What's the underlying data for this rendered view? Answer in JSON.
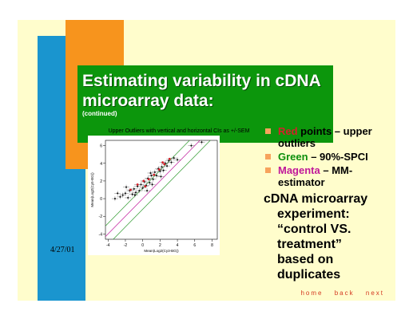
{
  "slide": {
    "title": "Estimating variability in cDNA microarray data:",
    "subtitle": "(continued)",
    "date": "4/27/01",
    "bullets": [
      {
        "colored": "Red",
        "color": "#d4202a",
        "rest": " points – upper outliers"
      },
      {
        "colored": "Green",
        "color": "#0c8f0c",
        "rest": " – 90%-SPCI"
      },
      {
        "colored": "Magenta",
        "color": "#c0189a",
        "rest": " – MM-estimator"
      }
    ],
    "experiment_lines": [
      "cDNA microarray",
      "experiment:",
      "“control VS.",
      "treatment”",
      "based on",
      "duplicates"
    ]
  },
  "nav": {
    "home": "home",
    "back": "back",
    "next": "next"
  },
  "colors": {
    "slide_bg": "#fffdcc",
    "blue_bar": "#1a95cf",
    "orange_bar": "#f7941d",
    "title_bg": "#0c960c",
    "nav": "#d4381f"
  },
  "chart_data": {
    "type": "scatter",
    "title": "Upper Outliers with vertical and horizontal CIs as +/-SEM",
    "xlabel": "Mean(Log2(Cy3-BG))",
    "ylabel": "Mean(Log2(Cy5-BG))",
    "x_ticks": [
      "-4",
      "-2",
      "0",
      "2",
      "4",
      "6",
      "8"
    ],
    "y_ticks": [
      "-4",
      "-2",
      "0",
      "2",
      "4",
      "6"
    ],
    "xlim": [
      -4.3,
      8.6
    ],
    "ylim": [
      -4.6,
      6.6
    ],
    "lines": [
      {
        "name": "upper-band",
        "slope": 1,
        "intercept": 1.2,
        "color": "#2e9a2e"
      },
      {
        "name": "estimator",
        "slope": 1,
        "intercept": 0,
        "color": "#c0189a"
      },
      {
        "name": "lower-band",
        "slope": 1,
        "intercept": -1.2,
        "color": "#2e9a2e"
      }
    ],
    "points": [
      [
        -2.6,
        0.2
      ],
      [
        -2.3,
        0.4
      ],
      [
        -2.0,
        0.6
      ],
      [
        -1.7,
        0.1
      ],
      [
        -1.5,
        0.9
      ],
      [
        -1.2,
        0.5
      ],
      [
        -1.0,
        1.1
      ],
      [
        -0.8,
        0.7
      ],
      [
        -0.6,
        1.4
      ],
      [
        -0.4,
        0.9
      ],
      [
        -0.2,
        1.6
      ],
      [
        0.0,
        1.2
      ],
      [
        0.2,
        1.9
      ],
      [
        0.4,
        1.5
      ],
      [
        0.6,
        2.3
      ],
      [
        0.8,
        1.8
      ],
      [
        1.0,
        2.6
      ],
      [
        1.2,
        2.2
      ],
      [
        1.4,
        3.0
      ],
      [
        1.6,
        2.6
      ],
      [
        1.8,
        3.4
      ],
      [
        2.0,
        3.1
      ],
      [
        2.2,
        3.6
      ],
      [
        2.4,
        3.2
      ],
      [
        2.6,
        4.0
      ],
      [
        2.8,
        3.7
      ],
      [
        3.0,
        4.3
      ],
      [
        3.3,
        4.1
      ],
      [
        3.6,
        4.6
      ],
      [
        4.0,
        4.4
      ],
      [
        -3.2,
        0.0
      ],
      [
        -2.9,
        0.6
      ],
      [
        -0.9,
        0.4
      ],
      [
        0.5,
        0.9
      ],
      [
        1.1,
        1.6
      ],
      [
        5.6,
        6.0
      ],
      [
        6.8,
        6.4
      ],
      [
        -1.9,
        1.3
      ],
      [
        0.9,
        2.9
      ],
      [
        2.1,
        2.5
      ]
    ],
    "red_points": [
      [
        -0.6,
        1.6
      ],
      [
        0.1,
        2.0
      ],
      [
        0.7,
        2.2
      ],
      [
        1.3,
        2.7
      ],
      [
        1.9,
        3.3
      ],
      [
        2.5,
        3.9
      ],
      [
        3.1,
        4.5
      ],
      [
        -1.4,
        1.0
      ],
      [
        0.3,
        1.4
      ],
      [
        2.3,
        4.1
      ]
    ]
  }
}
